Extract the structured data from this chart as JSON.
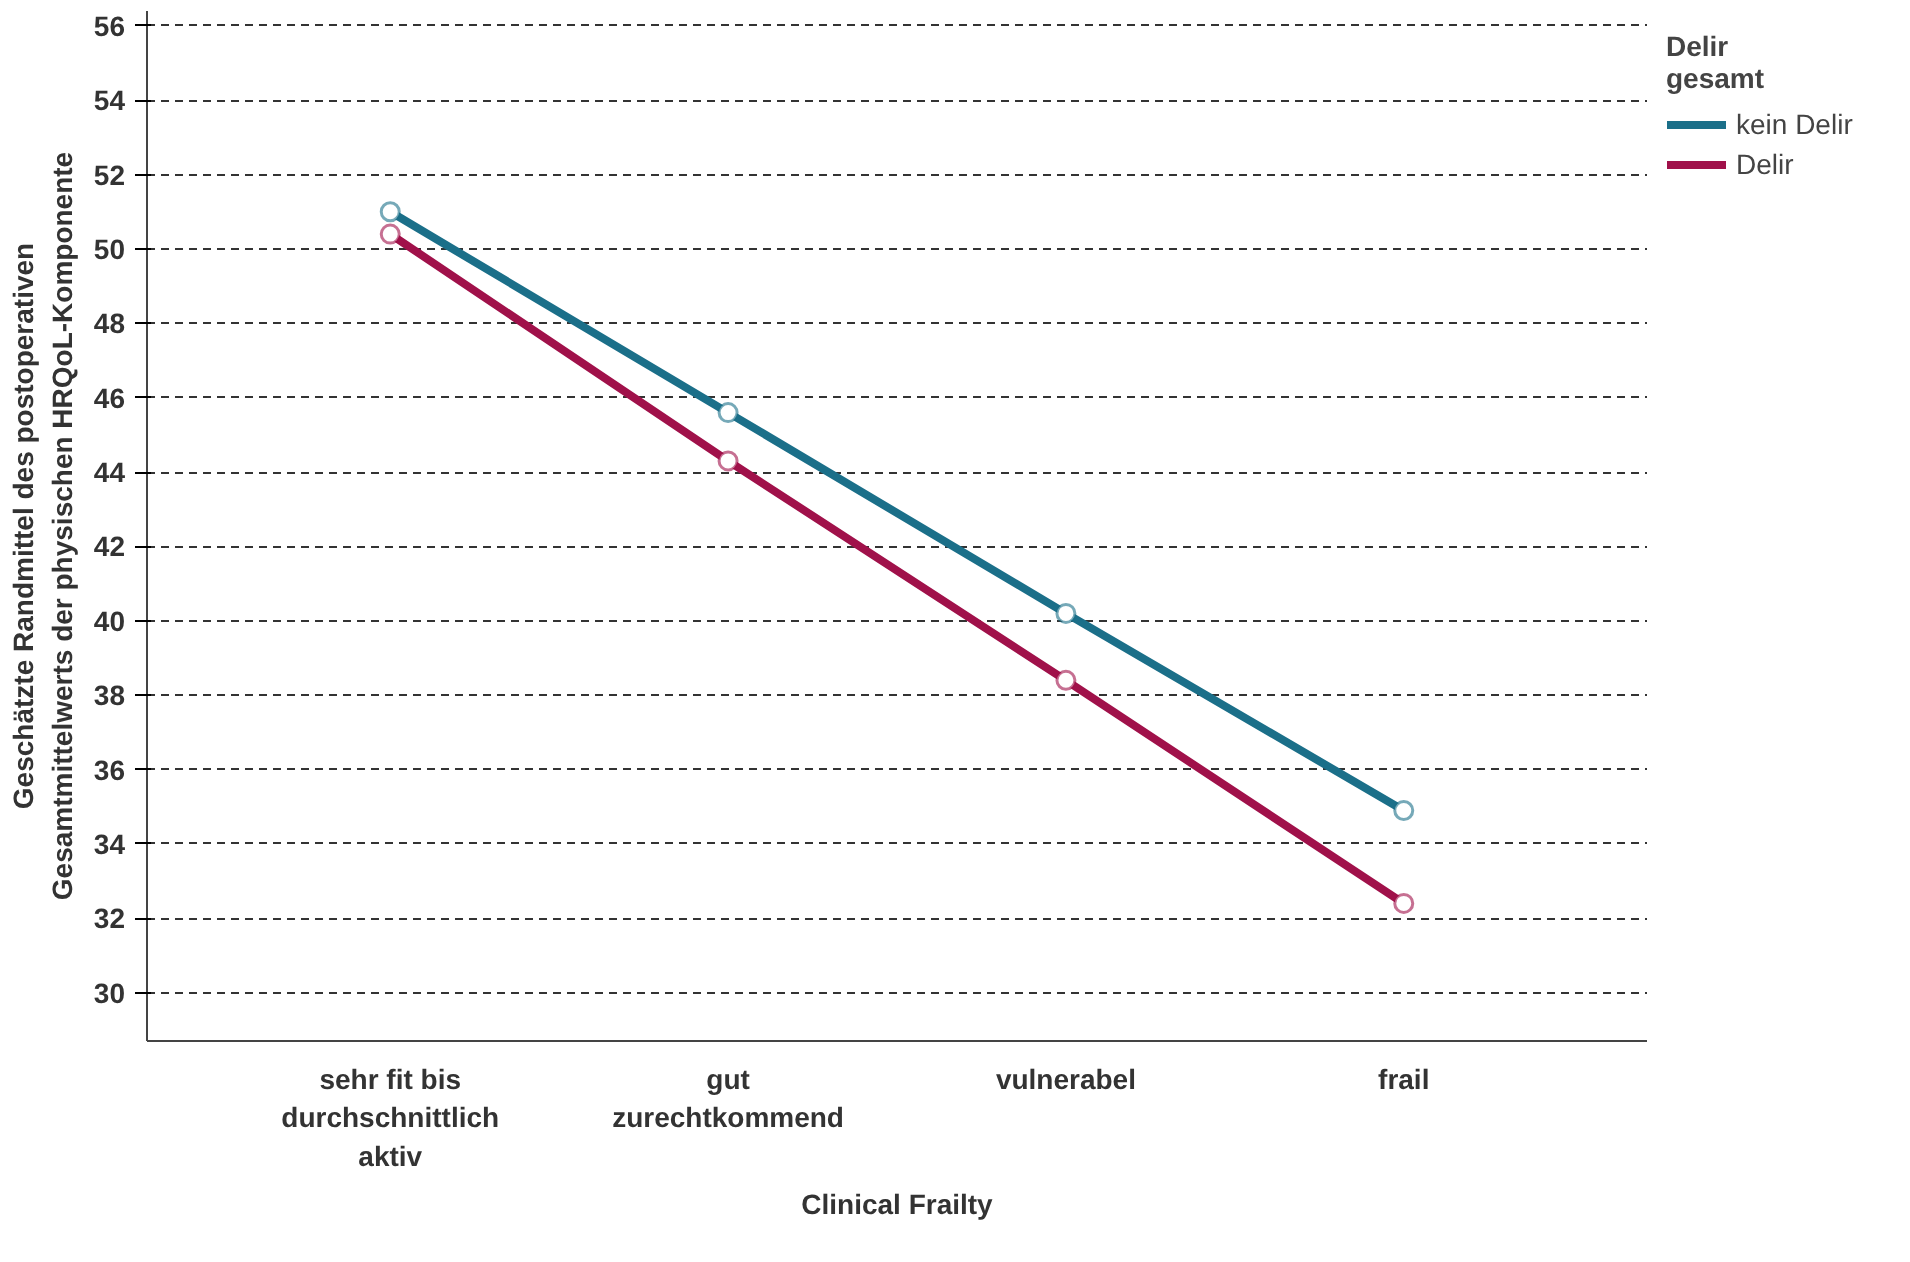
{
  "chart_data": {
    "type": "line",
    "xlabel": "Clinical Frailty",
    "ylabel": "Geschätzte Randmittel des postoperativen\nGesamtmittelwerts der physischen HRQoL-Komponente",
    "legend_title": "Delir\ngesamt",
    "categories": [
      "sehr fit bis\ndurchschnittlich\naktiv",
      "gut\nzurechtkommend",
      "vulnerabel",
      "frail"
    ],
    "series": [
      {
        "name": "kein Delir",
        "color": "#1b6f89",
        "values": [
          51.0,
          45.6,
          40.2,
          34.9
        ]
      },
      {
        "name": "Delir",
        "color": "#a0114a",
        "values": [
          50.4,
          44.3,
          38.4,
          32.4
        ]
      }
    ],
    "ylim": [
      28.7,
      56.4
    ],
    "yticks": [
      30,
      32,
      34,
      36,
      38,
      40,
      42,
      44,
      46,
      48,
      50,
      52,
      54,
      56
    ],
    "grid": "y",
    "legend": "top right",
    "marker": "circle",
    "line_style": "solid"
  }
}
